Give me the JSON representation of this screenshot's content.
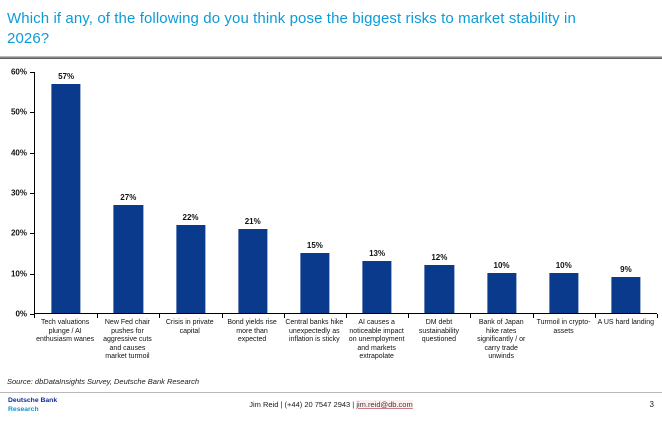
{
  "header": {
    "title": "Which if any, of the following do you think pose the biggest risks to market stability in 2026?"
  },
  "chart_data": {
    "type": "bar",
    "title": "Which if any, of the following do you think pose the biggest risks to market stability in 2026?",
    "categories": [
      "Tech valuations plunge / AI enthusiasm wanes",
      "New Fed chair pushes for aggressive cuts and causes market turmoil",
      "Crisis in private capital",
      "Bond yields rise more than expected",
      "Central banks hike unexpectedly as inflation is sticky",
      "AI causes a noticeable impact on unemployment and markets extrapolate",
      "DM debt sustainability questioned",
      "Bank of Japan hike rates significantly / or carry trade unwinds",
      "Turmoil in crypto-assets",
      "A US hard landing"
    ],
    "values": [
      57,
      27,
      22,
      21,
      15,
      13,
      12,
      10,
      10,
      9
    ],
    "value_labels": [
      "57%",
      "27%",
      "22%",
      "21%",
      "15%",
      "13%",
      "12%",
      "10%",
      "10%",
      "9%"
    ],
    "xlabel": "",
    "ylabel": "",
    "ylim": [
      0,
      60
    ],
    "ytick_step": 10,
    "ytick_labels": [
      "0%",
      "10%",
      "20%",
      "30%",
      "40%",
      "50%",
      "60%"
    ],
    "grid": false,
    "legend": "none",
    "bar_color": "#0a3a8c"
  },
  "theme": {
    "title_color": "#0d9bd8",
    "bar_color": "#0a3a8c",
    "brand_dark_blue": "#0f2a9e",
    "brand_light_blue": "#0098db"
  },
  "source": "Source: dbDataInsights Survey, Deutsche Bank Research",
  "footer": {
    "brand_line1": "Deutsche Bank",
    "brand_line2": "Research",
    "contact_text": "Jim Reid | (+44) 20 7547 2943 |",
    "contact_email": "jim.reid@db.com",
    "page_number": "3"
  }
}
